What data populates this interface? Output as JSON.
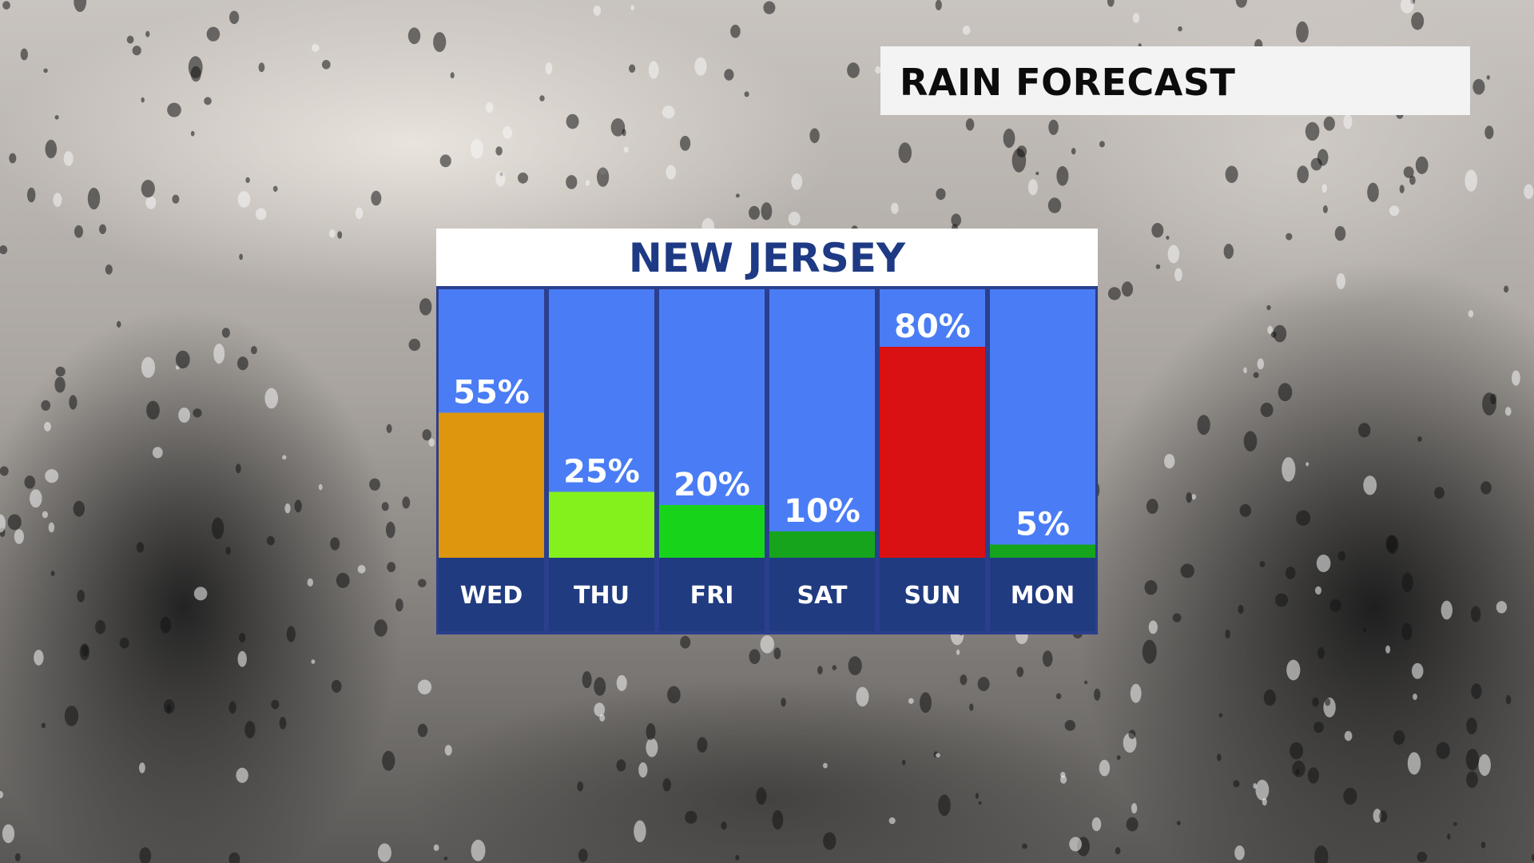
{
  "header": {
    "title": "RAIN FORECAST"
  },
  "panel": {
    "region": "NEW JERSEY"
  },
  "colors": {
    "column_bg": "#4a7df5",
    "day_strip": "#213b80",
    "frame": "#2b3f8e",
    "header_text": "#1f3a84"
  },
  "chart_data": {
    "type": "bar",
    "title": "NEW JERSEY",
    "categories": [
      "WED",
      "THU",
      "FRI",
      "SAT",
      "SUN",
      "MON"
    ],
    "values": [
      55,
      25,
      20,
      10,
      80,
      5
    ],
    "value_labels": [
      "55%",
      "25%",
      "20%",
      "10%",
      "80%",
      "5%"
    ],
    "bar_colors": [
      "#de960e",
      "#84f01c",
      "#17d41b",
      "#16a41c",
      "#d91112",
      "#16a41c"
    ],
    "ylim": [
      0,
      100
    ],
    "grid": false,
    "legend": "none"
  }
}
